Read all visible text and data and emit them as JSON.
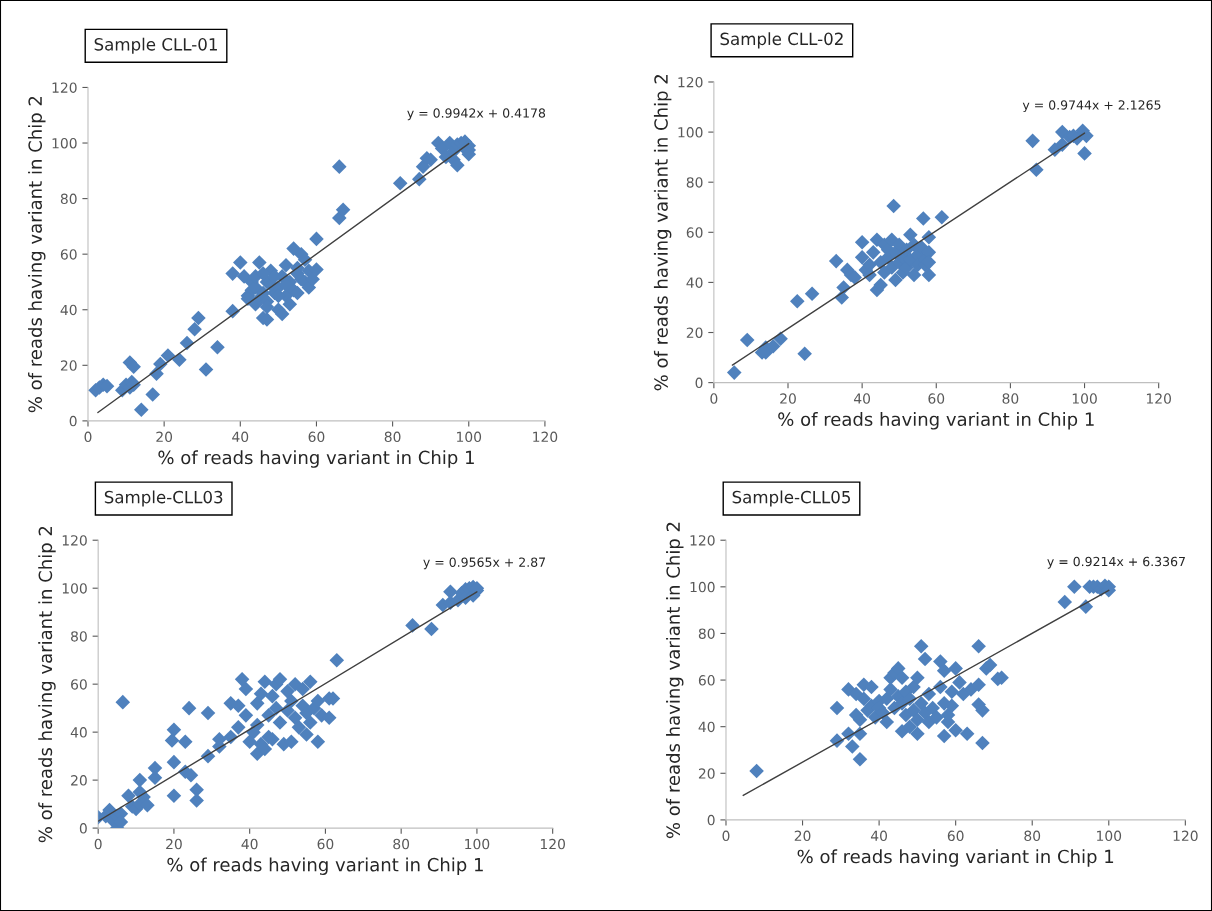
{
  "chart_data": [
    {
      "type": "scatter",
      "title": "Sample CLL-01",
      "xlabel": "% of reads having variant in Chip 1",
      "ylabel": "% of reads having variant in Chip 2",
      "xlim": [
        0,
        120
      ],
      "ylim": [
        0,
        120
      ],
      "xticks": [
        0,
        20,
        40,
        60,
        80,
        100,
        120
      ],
      "yticks": [
        0,
        20,
        40,
        60,
        80,
        100,
        120
      ],
      "annotations": [
        "y = 0.9942x + 0.4178"
      ],
      "series": [
        {
          "color": "#4f81bd",
          "marker": "diamond",
          "x": [
            2,
            3,
            4,
            5,
            9,
            10,
            11,
            11.5,
            12,
            11,
            12,
            14,
            17,
            18,
            19,
            21,
            24,
            26,
            28,
            29,
            31,
            34,
            38,
            38,
            40,
            41,
            42,
            43,
            44,
            45,
            45,
            46,
            47,
            47,
            48,
            49,
            50,
            50,
            51,
            51,
            52,
            52,
            53,
            53,
            54,
            54,
            55,
            55,
            56,
            56,
            57,
            57,
            58,
            58,
            59,
            60,
            60,
            66,
            66,
            67,
            82,
            87,
            88,
            89,
            90,
            92,
            93,
            94,
            95,
            96,
            96,
            97,
            97,
            98,
            99,
            99,
            100,
            100,
            100,
            42,
            43,
            44,
            46,
            47,
            48,
            49,
            50,
            52,
            44,
            46,
            47,
            55
          ],
          "values": [
            11,
            12,
            13,
            12.5,
            11,
            13,
            12,
            14,
            13,
            21,
            19.5,
            4,
            9.5,
            17,
            20.5,
            23.5,
            22,
            28,
            33,
            37,
            18.5,
            26.5,
            39.5,
            53,
            57,
            52,
            45,
            47,
            42,
            57,
            44,
            37,
            36.5,
            50,
            54,
            46,
            48,
            40,
            38.5,
            52,
            56,
            45,
            50,
            42,
            47,
            62,
            53,
            55,
            51,
            60,
            58,
            50,
            54,
            48,
            51,
            54.5,
            65.5,
            91.5,
            73,
            76,
            85.5,
            87,
            91.5,
            94.5,
            94,
            100,
            98,
            95,
            100,
            97,
            94,
            99.5,
            92,
            100,
            98,
            100.5,
            99,
            97.5,
            96,
            44,
            50,
            48,
            46,
            43,
            49,
            52,
            45,
            49,
            52,
            53,
            41,
            46
          ]
        },
        {
          "type": "line",
          "color": "#404040",
          "x": [
            2.6,
            100
          ],
          "values": [
            3.0,
            99.8
          ]
        }
      ]
    },
    {
      "type": "scatter",
      "title": "Sample CLL-02",
      "xlabel": "% of reads having variant in Chip 1",
      "ylabel": "% of reads having variant in Chip 2",
      "xlim": [
        0,
        120
      ],
      "ylim": [
        0,
        120
      ],
      "xticks": [
        0,
        20,
        40,
        60,
        80,
        100,
        120
      ],
      "yticks": [
        0,
        20,
        40,
        60,
        80,
        100,
        120
      ],
      "annotations": [
        "y = 0.9744x + 2.1265"
      ],
      "series": [
        {
          "color": "#4f81bd",
          "marker": "diamond",
          "x": [
            5.5,
            9,
            13,
            14,
            14,
            16,
            18,
            22.5,
            24.5,
            26.5,
            33,
            34.5,
            35,
            36,
            37,
            38,
            40,
            40,
            41,
            42,
            42,
            43,
            44,
            44,
            45,
            45,
            46,
            46,
            47,
            47,
            48,
            48,
            48.5,
            49,
            49,
            50,
            50,
            51,
            51,
            52,
            52,
            53,
            53,
            54,
            54,
            55,
            55,
            56,
            56.5,
            57,
            57,
            58,
            58,
            58,
            58,
            61.5,
            86,
            87,
            92,
            94,
            94,
            96,
            97,
            98,
            99.5,
            100,
            100.5
          ],
          "values": [
            4,
            17,
            12,
            14,
            12,
            14.5,
            17.5,
            32.5,
            11.5,
            35.5,
            48.5,
            34,
            38,
            45,
            43,
            42,
            56,
            50,
            45,
            47,
            43,
            52,
            57,
            37,
            39,
            48,
            55,
            44,
            50,
            53,
            57,
            46,
            70.5,
            41,
            52,
            48,
            55,
            44,
            50,
            53,
            46,
            59,
            49,
            55,
            43,
            51,
            47,
            54,
            65.5,
            49,
            47,
            58,
            52,
            43,
            48,
            66,
            96.5,
            85,
            93,
            95,
            100,
            98,
            98.5,
            97.5,
            100.5,
            91.5,
            98.5
          ]
        },
        {
          "type": "line",
          "color": "#404040",
          "x": [
            5,
            100
          ],
          "values": [
            7.0,
            99.6
          ]
        }
      ]
    },
    {
      "type": "scatter",
      "title": "Sample-CLL03",
      "xlabel": "% of reads having variant in Chip 1",
      "ylabel": "% of reads having variant in Chip 2",
      "xlim": [
        0,
        120
      ],
      "ylim": [
        0,
        120
      ],
      "xticks": [
        0,
        20,
        40,
        60,
        80,
        100,
        120
      ],
      "yticks": [
        0,
        20,
        40,
        60,
        80,
        100,
        120
      ],
      "annotations": [
        "y = 0.9565x + 2.87"
      ],
      "series": [
        {
          "color": "#4f81bd",
          "marker": "diamond",
          "x": [
            0,
            2,
            3,
            4,
            5,
            5,
            6,
            6,
            6.5,
            8,
            9,
            10,
            11,
            11,
            11,
            12,
            13,
            15,
            15,
            20,
            19.5,
            20,
            20,
            23,
            23,
            24.5,
            24,
            26,
            26,
            29,
            29,
            32,
            32,
            35,
            35,
            37,
            37,
            38,
            39,
            39,
            40,
            41,
            42,
            42,
            42,
            43,
            43,
            44,
            44,
            45,
            45,
            46,
            46,
            47,
            47,
            48,
            48,
            49,
            50,
            50,
            51,
            51,
            52,
            52,
            53,
            54,
            54,
            55,
            55,
            56,
            56,
            57,
            58,
            58,
            59,
            61,
            61,
            62,
            63,
            83,
            88,
            91,
            93,
            93,
            95,
            96,
            97,
            97,
            98,
            99,
            99,
            100,
            100
          ],
          "values": [
            4.5,
            5,
            7.5,
            3,
            0,
            5,
            6,
            2.5,
            52.5,
            13.5,
            9,
            8,
            10,
            20,
            15,
            13,
            9.5,
            21,
            25,
            13.5,
            36.5,
            41,
            27.5,
            36,
            23.5,
            22,
            50,
            16,
            11.5,
            30,
            48,
            34,
            37,
            38,
            52,
            42,
            51,
            62,
            58,
            47,
            36,
            40,
            52,
            43,
            31,
            35,
            56,
            61,
            33,
            47,
            38,
            37,
            55,
            50,
            60,
            44,
            62,
            35,
            49,
            57,
            53,
            36,
            46,
            60,
            42,
            51,
            58,
            48,
            39,
            44,
            61,
            50,
            36,
            53,
            47,
            54,
            46,
            54,
            70,
            84.5,
            83,
            93,
            98.5,
            94,
            95,
            98,
            99.5,
            96,
            100,
            97,
            100.5,
            99,
            100
          ]
        },
        {
          "type": "line",
          "color": "#404040",
          "x": [
            0,
            100
          ],
          "values": [
            2.9,
            98.5
          ]
        }
      ]
    },
    {
      "type": "scatter",
      "title": "Sample-CLL05",
      "xlabel": "% of reads having variant in Chip 1",
      "ylabel": "% of reads having variant in Chip 2",
      "xlim": [
        0,
        120
      ],
      "ylim": [
        0,
        120
      ],
      "xticks": [
        0,
        20,
        40,
        60,
        80,
        100,
        120
      ],
      "yticks": [
        0,
        20,
        40,
        60,
        80,
        100,
        120
      ],
      "annotations": [
        "y = 0.9214x + 6.3367"
      ],
      "series": [
        {
          "color": "#4f81bd",
          "marker": "diamond",
          "x": [
            8,
            29,
            29,
            32,
            32,
            33,
            34,
            34,
            35,
            35,
            35,
            36,
            36,
            37,
            38,
            38,
            39,
            40,
            40,
            41,
            42,
            42,
            43,
            43,
            44,
            44,
            45,
            45,
            46,
            46,
            46,
            47,
            47,
            48,
            48,
            49,
            49,
            50,
            50,
            50,
            51,
            51,
            52,
            52,
            53,
            53,
            54,
            55,
            56,
            56,
            57,
            57,
            57,
            58,
            58,
            59,
            59,
            60,
            60,
            61,
            62,
            63,
            64,
            66,
            66,
            66,
            67,
            67,
            68,
            69,
            72,
            71,
            88.5,
            91,
            94,
            95,
            96,
            97,
            98,
            99,
            100,
            100
          ],
          "values": [
            21,
            48,
            34,
            56,
            37,
            31.5,
            54,
            45,
            26,
            37,
            43,
            58,
            52,
            47,
            57,
            49,
            44,
            51,
            48,
            46,
            52,
            42,
            61,
            56,
            63,
            48,
            65,
            53,
            61,
            38,
            50,
            55,
            45,
            40,
            52,
            57,
            47,
            61,
            43,
            37,
            74.5,
            50,
            69,
            46,
            54,
            42,
            48,
            44,
            68,
            57,
            64,
            50,
            36,
            45,
            42,
            55,
            49,
            65,
            38.5,
            59,
            54,
            37,
            56,
            74.5,
            58,
            49.5,
            33,
            47,
            65,
            66.5,
            61,
            60.5,
            93.5,
            100,
            91.5,
            100,
            100,
            100,
            99,
            100.5,
            100,
            98.5
          ]
        },
        {
          "type": "line",
          "color": "#404040",
          "x": [
            4.5,
            100
          ],
          "values": [
            10.5,
            98.5
          ]
        }
      ]
    }
  ]
}
